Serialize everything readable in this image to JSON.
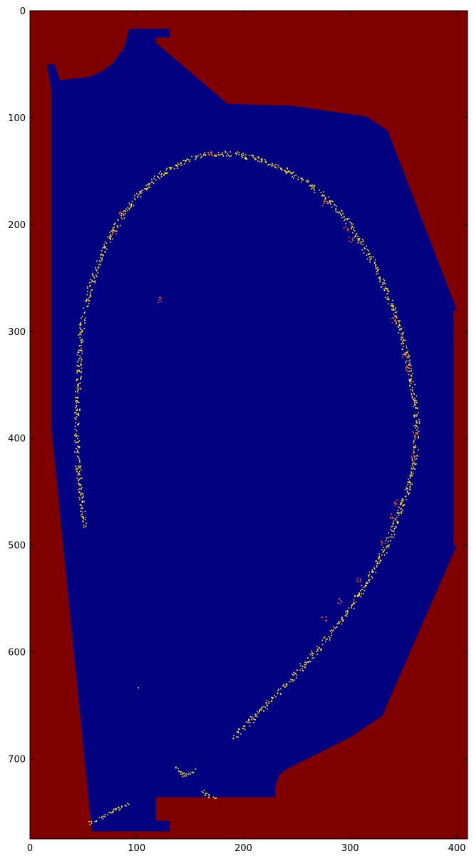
{
  "chart_data": {
    "type": "heatmap",
    "title": "",
    "xlabel": "",
    "ylabel": "",
    "xlim": [
      0,
      410
    ],
    "ylim": [
      775,
      0
    ],
    "x_ticks": [
      0,
      100,
      200,
      300,
      400
    ],
    "y_ticks": [
      0,
      100,
      200,
      300,
      400,
      500,
      600,
      700
    ],
    "colormap": "jet",
    "colors": {
      "background": "#800000",
      "vessel": "#000080",
      "low_emission": "#ffe51a",
      "high_emission": "#ff5a00",
      "frame": "#000000"
    },
    "vessel_outline": [
      [
        93,
        17
      ],
      [
        131,
        17
      ],
      [
        131,
        25
      ],
      [
        118,
        25
      ],
      [
        118,
        30
      ],
      [
        185,
        87
      ],
      [
        210,
        88
      ],
      [
        245,
        89
      ],
      [
        315,
        99
      ],
      [
        335,
        112
      ],
      [
        400,
        280
      ],
      [
        397,
        280
      ],
      [
        397,
        500
      ],
      [
        400,
        500
      ],
      [
        330,
        660
      ],
      [
        300,
        680
      ],
      [
        240,
        710
      ],
      [
        233,
        716
      ],
      [
        230,
        726
      ],
      [
        230,
        736
      ],
      [
        118,
        736
      ],
      [
        118,
        758
      ],
      [
        131,
        758
      ],
      [
        131,
        768
      ],
      [
        58,
        768
      ],
      [
        20,
        390
      ],
      [
        20,
        75
      ],
      [
        16,
        50
      ],
      [
        23,
        50
      ],
      [
        28,
        65
      ],
      [
        55,
        62
      ],
      [
        67,
        57
      ],
      [
        77,
        50
      ],
      [
        88,
        35
      ]
    ],
    "small_blob_points": [
      [
        101,
        633
      ]
    ],
    "emission_arc": [
      [
        51,
        482
      ],
      [
        48,
        462
      ],
      [
        46,
        440
      ],
      [
        44,
        415
      ],
      [
        43,
        393
      ],
      [
        44,
        370
      ],
      [
        45,
        348
      ],
      [
        46,
        320
      ],
      [
        48,
        298
      ],
      [
        51,
        280
      ],
      [
        55,
        262
      ],
      [
        60,
        246
      ],
      [
        66,
        230
      ],
      [
        74,
        212
      ],
      [
        83,
        196
      ],
      [
        95,
        180
      ],
      [
        108,
        165
      ],
      [
        122,
        153
      ],
      [
        138,
        143
      ],
      [
        156,
        136
      ],
      [
        175,
        133
      ],
      [
        196,
        134
      ],
      [
        217,
        140
      ],
      [
        237,
        148
      ],
      [
        256,
        158
      ],
      [
        275,
        173
      ],
      [
        293,
        192
      ],
      [
        308,
        213
      ],
      [
        320,
        234
      ],
      [
        331,
        257
      ],
      [
        341,
        282
      ],
      [
        349,
        308
      ],
      [
        355,
        335
      ],
      [
        360,
        362
      ],
      [
        362,
        385
      ],
      [
        361,
        410
      ],
      [
        357,
        438
      ],
      [
        349,
        460
      ],
      [
        342,
        478
      ],
      [
        334,
        500
      ],
      [
        322,
        522
      ],
      [
        307,
        548
      ],
      [
        290,
        572
      ],
      [
        272,
        594
      ],
      [
        254,
        614
      ],
      [
        236,
        634
      ],
      [
        218,
        652
      ],
      [
        202,
        668
      ],
      [
        190,
        680
      ]
    ],
    "emission_hotspots": [
      [
        168,
        133
      ],
      [
        296,
        204
      ],
      [
        276,
        180
      ],
      [
        300,
        214
      ],
      [
        340,
        290
      ],
      [
        351,
        322
      ],
      [
        354,
        334
      ],
      [
        360,
        395
      ],
      [
        359,
        415
      ],
      [
        342,
        460
      ],
      [
        339,
        472
      ],
      [
        331,
        497
      ],
      [
        308,
        532
      ],
      [
        290,
        552
      ],
      [
        275,
        568
      ],
      [
        122,
        270
      ],
      [
        78,
        206
      ],
      [
        85,
        190
      ]
    ],
    "lower_fragments": [
      [
        [
          55,
          760
        ],
        [
          70,
          753
        ],
        [
          80,
          747
        ],
        [
          92,
          742
        ]
      ],
      [
        [
          137,
          708
        ],
        [
          143,
          715
        ],
        [
          150,
          713
        ],
        [
          155,
          710
        ]
      ],
      [
        [
          160,
          730
        ],
        [
          168,
          735
        ],
        [
          175,
          736
        ]
      ]
    ]
  }
}
